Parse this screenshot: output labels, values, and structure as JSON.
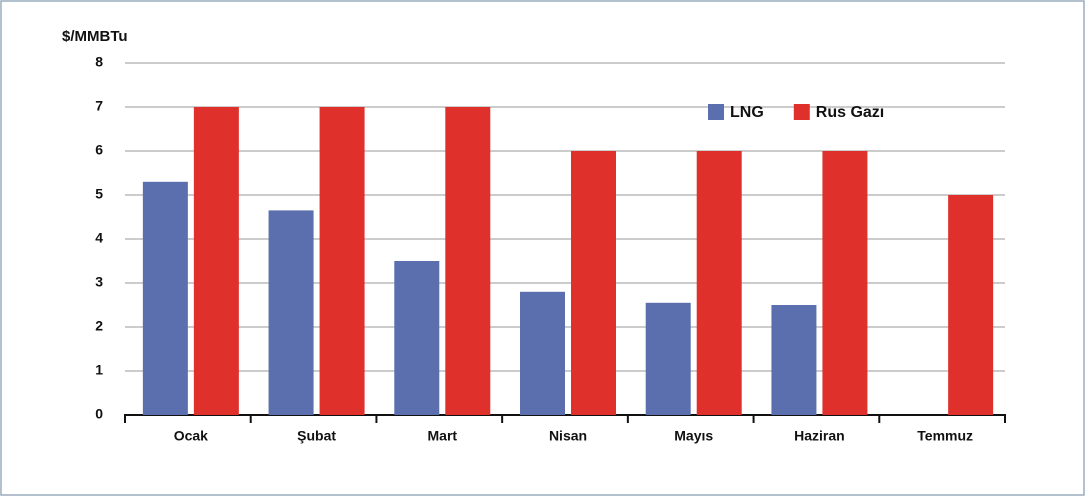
{
  "chart_data": {
    "type": "bar",
    "y_label": "$/MMBTu",
    "categories": [
      "Ocak",
      "Şubat",
      "Mart",
      "Nisan",
      "Mayıs",
      "Haziran",
      "Temmuz"
    ],
    "series": [
      {
        "name": "LNG",
        "color": "#5b6fae",
        "values": [
          5.3,
          4.65,
          3.5,
          2.8,
          2.55,
          2.5,
          null
        ]
      },
      {
        "name": "Rus Gazı",
        "color": "#e0302b",
        "values": [
          7,
          7,
          7,
          6,
          6,
          6,
          5
        ]
      }
    ],
    "ylim": [
      0,
      8
    ],
    "yticks": [
      0,
      1,
      2,
      3,
      4,
      5,
      6,
      7,
      8
    ],
    "grid": true,
    "legend": "top-right"
  }
}
